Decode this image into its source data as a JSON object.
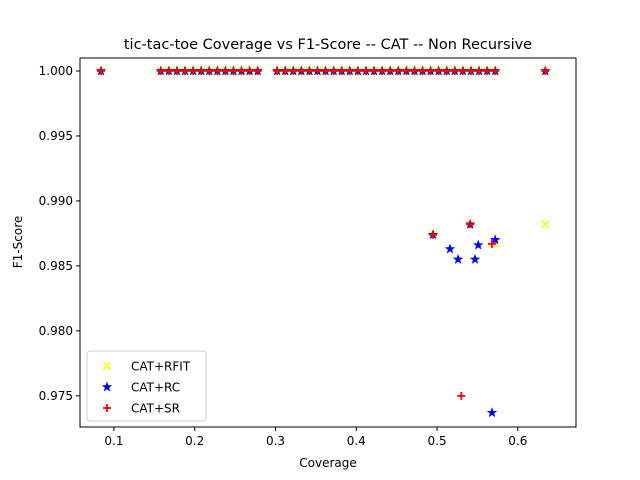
{
  "chart_data": {
    "type": "scatter",
    "title": "tic-tac-toe Coverage vs F1-Score -- CAT -- Non Recursive",
    "xlabel": "Coverage",
    "ylabel": "F1-Score",
    "xlim": [
      0.058,
      0.672
    ],
    "ylim": [
      0.9726,
      1.001
    ],
    "xticks": [
      0.1,
      0.2,
      0.3,
      0.4,
      0.5,
      0.6
    ],
    "xtick_labels": [
      "0.1",
      "0.2",
      "0.3",
      "0.4",
      "0.5",
      "0.6"
    ],
    "yticks": [
      0.975,
      0.98,
      0.985,
      0.99,
      0.995,
      1.0
    ],
    "ytick_labels": [
      "0.975",
      "0.980",
      "0.985",
      "0.990",
      "0.995",
      "1.000"
    ],
    "grid": false,
    "legend_position": "lower-left",
    "series": [
      {
        "name": "CAT+RFIT",
        "marker": "x",
        "color": "#ffff00",
        "x": [
          0.084,
          0.158,
          0.168,
          0.178,
          0.188,
          0.198,
          0.208,
          0.218,
          0.228,
          0.238,
          0.248,
          0.258,
          0.268,
          0.278,
          0.302,
          0.312,
          0.322,
          0.332,
          0.342,
          0.352,
          0.362,
          0.372,
          0.382,
          0.392,
          0.402,
          0.412,
          0.422,
          0.432,
          0.442,
          0.452,
          0.462,
          0.472,
          0.482,
          0.492,
          0.502,
          0.512,
          0.522,
          0.532,
          0.542,
          0.552,
          0.562,
          0.572,
          0.634,
          0.495,
          0.541,
          0.572,
          0.634
        ],
        "y": [
          1.0,
          1.0,
          1.0,
          1.0,
          1.0,
          1.0,
          1.0,
          1.0,
          1.0,
          1.0,
          1.0,
          1.0,
          1.0,
          1.0,
          1.0,
          1.0,
          1.0,
          1.0,
          1.0,
          1.0,
          1.0,
          1.0,
          1.0,
          1.0,
          1.0,
          1.0,
          1.0,
          1.0,
          1.0,
          1.0,
          1.0,
          1.0,
          1.0,
          1.0,
          1.0,
          1.0,
          1.0,
          1.0,
          1.0,
          1.0,
          1.0,
          1.0,
          1.0,
          0.9874,
          0.9882,
          0.9867,
          0.9882
        ]
      },
      {
        "name": "CAT+RC",
        "marker": "*",
        "color": "#0000ff",
        "x": [
          0.084,
          0.158,
          0.168,
          0.178,
          0.188,
          0.198,
          0.208,
          0.218,
          0.228,
          0.238,
          0.248,
          0.258,
          0.268,
          0.278,
          0.302,
          0.312,
          0.322,
          0.332,
          0.342,
          0.352,
          0.362,
          0.372,
          0.382,
          0.392,
          0.402,
          0.412,
          0.422,
          0.432,
          0.442,
          0.452,
          0.462,
          0.472,
          0.482,
          0.492,
          0.502,
          0.512,
          0.522,
          0.532,
          0.542,
          0.552,
          0.562,
          0.572,
          0.634,
          0.495,
          0.541,
          0.516,
          0.526,
          0.547,
          0.551,
          0.572,
          0.568
        ],
        "y": [
          1.0,
          1.0,
          1.0,
          1.0,
          1.0,
          1.0,
          1.0,
          1.0,
          1.0,
          1.0,
          1.0,
          1.0,
          1.0,
          1.0,
          1.0,
          1.0,
          1.0,
          1.0,
          1.0,
          1.0,
          1.0,
          1.0,
          1.0,
          1.0,
          1.0,
          1.0,
          1.0,
          1.0,
          1.0,
          1.0,
          1.0,
          1.0,
          1.0,
          1.0,
          1.0,
          1.0,
          1.0,
          1.0,
          1.0,
          1.0,
          1.0,
          1.0,
          1.0,
          0.9874,
          0.9882,
          0.9863,
          0.9855,
          0.9855,
          0.9866,
          0.987,
          0.9737
        ]
      },
      {
        "name": "CAT+SR",
        "marker": "+",
        "color": "#ff0000",
        "x": [
          0.084,
          0.158,
          0.168,
          0.178,
          0.188,
          0.198,
          0.208,
          0.218,
          0.228,
          0.238,
          0.248,
          0.258,
          0.268,
          0.278,
          0.302,
          0.312,
          0.322,
          0.332,
          0.342,
          0.352,
          0.362,
          0.372,
          0.382,
          0.392,
          0.402,
          0.412,
          0.422,
          0.432,
          0.442,
          0.452,
          0.462,
          0.472,
          0.482,
          0.492,
          0.502,
          0.512,
          0.522,
          0.532,
          0.542,
          0.552,
          0.562,
          0.572,
          0.634,
          0.495,
          0.541,
          0.568,
          0.53
        ],
        "y": [
          1.0,
          1.0,
          1.0,
          1.0,
          1.0,
          1.0,
          1.0,
          1.0,
          1.0,
          1.0,
          1.0,
          1.0,
          1.0,
          1.0,
          1.0,
          1.0,
          1.0,
          1.0,
          1.0,
          1.0,
          1.0,
          1.0,
          1.0,
          1.0,
          1.0,
          1.0,
          1.0,
          1.0,
          1.0,
          1.0,
          1.0,
          1.0,
          1.0,
          1.0,
          1.0,
          1.0,
          1.0,
          1.0,
          1.0,
          1.0,
          1.0,
          1.0,
          1.0,
          0.9874,
          0.9882,
          0.9867,
          0.975
        ]
      }
    ]
  }
}
